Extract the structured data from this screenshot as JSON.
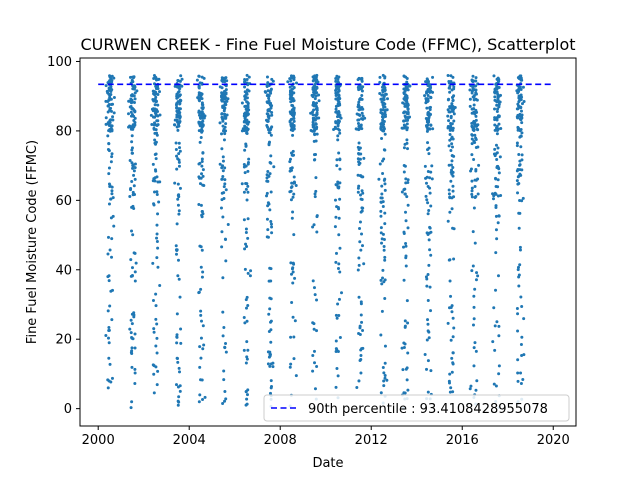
{
  "chart_data": {
    "type": "scatter",
    "title": "CURWEN CREEK - Fine Fuel Moisture Code (FFMC), Scatterplot",
    "xlabel": "Date",
    "ylabel": "Fine Fuel Moisture Code (FFMC)",
    "xlim": [
      1999.2,
      2021.0
    ],
    "ylim": [
      -5,
      101
    ],
    "xticks": [
      2000,
      2004,
      2008,
      2012,
      2016,
      2020
    ],
    "xtick_labels": [
      "2000",
      "2004",
      "2008",
      "2012",
      "2016",
      "2020"
    ],
    "yticks": [
      0,
      20,
      40,
      60,
      80,
      100
    ],
    "ytick_labels": [
      "0",
      "20",
      "40",
      "60",
      "80",
      "100"
    ],
    "grid": false,
    "legend_position": "lower-right",
    "point_color": "#1f77b4",
    "reference_line": {
      "label": "90th percentile : 93.4108428955078",
      "value": 93.4108428955078,
      "x_range": [
        2000.0,
        2020.0
      ],
      "color": "#0000ff",
      "style": "dashed"
    },
    "seasons": [
      {
        "year": 2000,
        "start": 2000.33,
        "end": 2000.72
      },
      {
        "year": 2001,
        "start": 2001.33,
        "end": 2001.72
      },
      {
        "year": 2002,
        "start": 2002.33,
        "end": 2002.72
      },
      {
        "year": 2003,
        "start": 2003.33,
        "end": 2003.72
      },
      {
        "year": 2004,
        "start": 2004.33,
        "end": 2004.72
      },
      {
        "year": 2005,
        "start": 2005.33,
        "end": 2005.72
      },
      {
        "year": 2006,
        "start": 2006.33,
        "end": 2006.72
      },
      {
        "year": 2007,
        "start": 2007.33,
        "end": 2007.72
      },
      {
        "year": 2008,
        "start": 2008.33,
        "end": 2008.72
      },
      {
        "year": 2009,
        "start": 2009.33,
        "end": 2009.72
      },
      {
        "year": 2010,
        "start": 2010.33,
        "end": 2010.72
      },
      {
        "year": 2011,
        "start": 2011.33,
        "end": 2011.72
      },
      {
        "year": 2012,
        "start": 2012.33,
        "end": 2012.72
      },
      {
        "year": 2013,
        "start": 2013.33,
        "end": 2013.72
      },
      {
        "year": 2014,
        "start": 2014.33,
        "end": 2014.72
      },
      {
        "year": 2015,
        "start": 2015.33,
        "end": 2015.72
      },
      {
        "year": 2016,
        "start": 2016.33,
        "end": 2016.72
      },
      {
        "year": 2017,
        "start": 2017.33,
        "end": 2017.72
      },
      {
        "year": 2018,
        "start": 2018.33,
        "end": 2018.72
      }
    ],
    "points_per_season": 120,
    "ffmc_typical_range": [
      0,
      97
    ]
  }
}
